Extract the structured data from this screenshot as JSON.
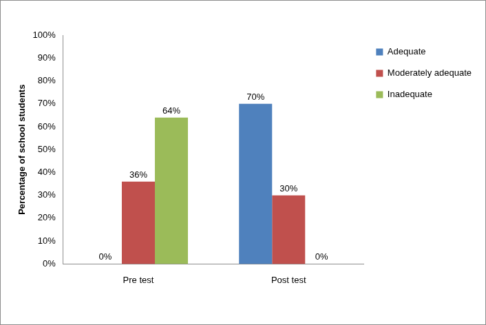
{
  "chart_data": {
    "type": "bar",
    "y_label": "Percentage of school students",
    "categories": [
      "Pre test",
      "Post test"
    ],
    "series": [
      {
        "name": "Adequate",
        "color": "#4f81bd",
        "values": [
          0,
          70
        ],
        "value_labels": [
          "0%",
          "70%"
        ]
      },
      {
        "name": "Moderately adequate",
        "color": "#c0504d",
        "values": [
          36,
          30
        ],
        "value_labels": [
          "36%",
          "30%"
        ]
      },
      {
        "name": "Inadequate",
        "color": "#9bbb59",
        "values": [
          64,
          0
        ],
        "value_labels": [
          "64%",
          "0%"
        ]
      }
    ],
    "ylim": [
      0,
      100
    ],
    "yticks": [
      {
        "value": 0,
        "label": "0%"
      },
      {
        "value": 10,
        "label": "10%"
      },
      {
        "value": 20,
        "label": "20%"
      },
      {
        "value": 30,
        "label": "30%"
      },
      {
        "value": 40,
        "label": "40%"
      },
      {
        "value": 50,
        "label": "50%"
      },
      {
        "value": 60,
        "label": "60%"
      },
      {
        "value": 70,
        "label": "70%"
      },
      {
        "value": 80,
        "label": "80%"
      },
      {
        "value": 90,
        "label": "90%"
      },
      {
        "value": 100,
        "label": "100%"
      }
    ],
    "grid": false,
    "legend": "upper right",
    "data_labels": true
  }
}
